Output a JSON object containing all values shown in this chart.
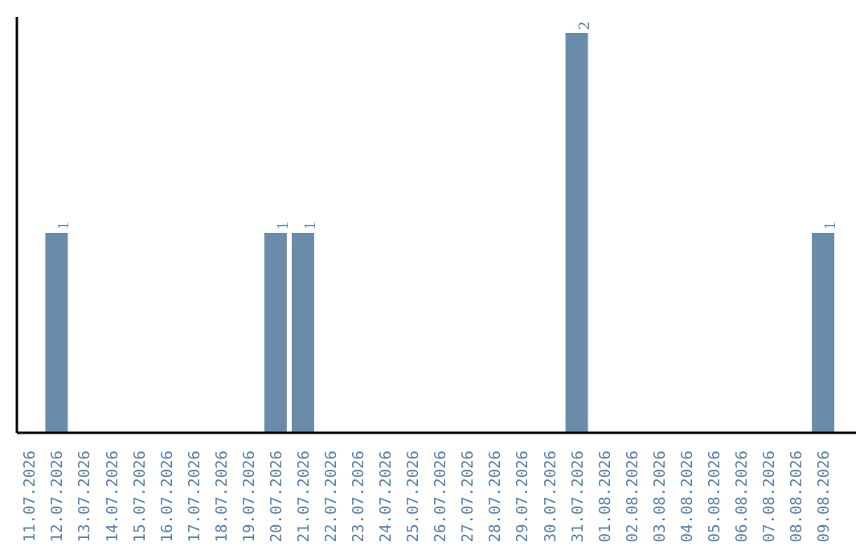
{
  "chart_data": {
    "type": "bar",
    "categories": [
      "11.07.2026",
      "12.07.2026",
      "13.07.2026",
      "14.07.2026",
      "15.07.2026",
      "16.07.2026",
      "17.07.2026",
      "18.07.2026",
      "19.07.2026",
      "20.07.2026",
      "21.07.2026",
      "22.07.2026",
      "23.07.2026",
      "24.07.2026",
      "25.07.2026",
      "26.07.2026",
      "27.07.2026",
      "28.07.2026",
      "29.07.2026",
      "30.07.2026",
      "31.07.2026",
      "01.08.2026",
      "02.08.2026",
      "03.08.2026",
      "04.08.2026",
      "05.08.2026",
      "06.08.2026",
      "07.08.2026",
      "08.08.2026",
      "09.08.2026"
    ],
    "values": [
      0,
      1,
      0,
      0,
      0,
      0,
      0,
      0,
      0,
      1,
      1,
      0,
      0,
      0,
      0,
      0,
      0,
      0,
      0,
      0,
      2,
      0,
      0,
      0,
      0,
      0,
      0,
      0,
      0,
      1
    ],
    "value_labels": [
      null,
      "1",
      null,
      null,
      null,
      null,
      null,
      null,
      null,
      "1",
      "1",
      null,
      null,
      null,
      null,
      null,
      null,
      null,
      null,
      null,
      "2",
      null,
      null,
      null,
      null,
      null,
      null,
      null,
      null,
      "1"
    ],
    "color": "#6a8caa",
    "ylim": [
      0,
      2.08
    ],
    "tick_labels": "x",
    "grid": false
  }
}
